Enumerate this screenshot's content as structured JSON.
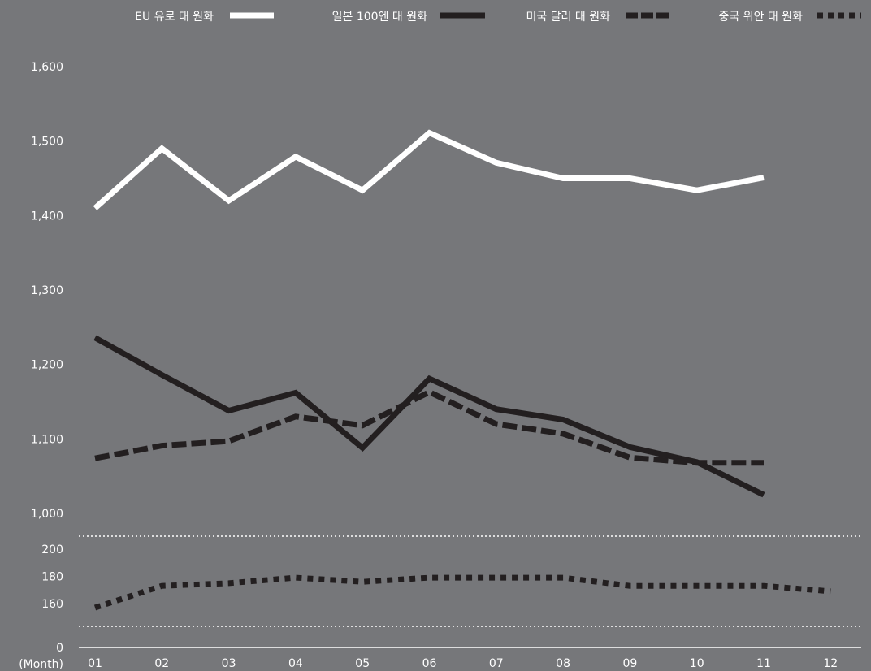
{
  "chart_data": {
    "type": "line",
    "xlabel": "(Month)",
    "categories": [
      "01",
      "02",
      "03",
      "04",
      "05",
      "06",
      "07",
      "08",
      "09",
      "10",
      "11",
      "12"
    ],
    "upper_yticks": [
      "1,600",
      "1,500",
      "1,400",
      "1,300",
      "1,200",
      "1,100",
      "1,000"
    ],
    "lower_yticks": [
      "200",
      "180",
      "160",
      "0"
    ],
    "upper_ylim": [
      1000,
      1600
    ],
    "lower_ylim": [
      150,
      210
    ],
    "legend_position": "top",
    "series": [
      {
        "name": "EU 유로 대 원화",
        "color": "#ffffff",
        "style": "solid",
        "panel": "upper",
        "values": [
          1410,
          1490,
          1420,
          1479,
          1434,
          1511,
          1471,
          1450,
          1450,
          1434,
          1451,
          null
        ]
      },
      {
        "name": "일본 100엔 대 원화",
        "color": "#231f20",
        "style": "solid",
        "panel": "upper",
        "values": [
          1236,
          1186,
          1138,
          1162,
          1088,
          1181,
          1140,
          1126,
          1089,
          1069,
          1025,
          null
        ]
      },
      {
        "name": "미국 달러 대 원화",
        "color": "#231f20",
        "style": "dashed",
        "panel": "upper",
        "values": [
          1074,
          1091,
          1097,
          1130,
          1118,
          1163,
          1120,
          1107,
          1075,
          1068,
          1068,
          null
        ]
      },
      {
        "name": "중국 위안 대 원화",
        "color": "#231f20",
        "style": "dotted",
        "panel": "lower",
        "values": [
          160,
          176,
          178,
          182,
          179,
          182,
          182,
          182,
          176,
          176,
          176,
          172
        ]
      }
    ]
  }
}
